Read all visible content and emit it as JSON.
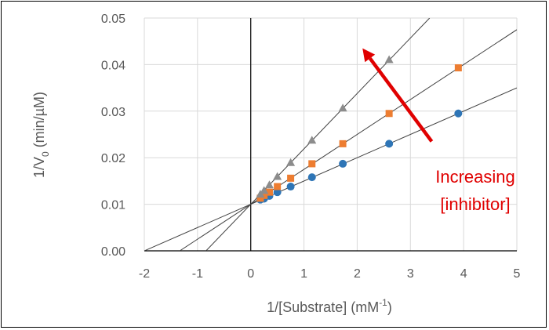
{
  "chart_data": {
    "type": "scatter",
    "title": "",
    "xlabel": "1/[Substrate] (mM",
    "xlabel_sup": "-1",
    "xlabel_end": ")",
    "ylabel": "1/V",
    "ylabel_sub": "0",
    "ylabel_end": " (min/µM)",
    "xlim": [
      -2,
      5
    ],
    "ylim": [
      0,
      0.05
    ],
    "grid": true,
    "x_ticks": [
      "-2",
      "-1",
      "0",
      "1",
      "2",
      "3",
      "4",
      "5"
    ],
    "y_ticks": [
      "0.00",
      "0.01",
      "0.02",
      "0.03",
      "0.04",
      "0.05"
    ],
    "series": [
      {
        "marker": "circle",
        "color": "#2e75b6",
        "fit": {
          "slope": 0.005,
          "intercept": 0.01
        },
        "points": [
          [
            0.18,
            0.011
          ],
          [
            0.25,
            0.0112
          ],
          [
            0.35,
            0.0118
          ],
          [
            0.5,
            0.0126
          ],
          [
            0.75,
            0.0138
          ],
          [
            1.15,
            0.0158
          ],
          [
            1.73,
            0.0187
          ],
          [
            2.6,
            0.023
          ],
          [
            3.9,
            0.0295
          ]
        ]
      },
      {
        "marker": "square",
        "color": "#ed7d31",
        "fit": {
          "slope": 0.0075,
          "intercept": 0.01
        },
        "points": [
          [
            0.18,
            0.0113
          ],
          [
            0.25,
            0.0119
          ],
          [
            0.35,
            0.0126
          ],
          [
            0.5,
            0.0138
          ],
          [
            0.75,
            0.0156
          ],
          [
            1.15,
            0.0187
          ],
          [
            1.73,
            0.023
          ],
          [
            2.6,
            0.0295
          ],
          [
            3.9,
            0.0393
          ]
        ]
      },
      {
        "marker": "triangle",
        "color": "#8c8c8c",
        "fit": {
          "slope": 0.0119,
          "intercept": 0.01
        },
        "points": [
          [
            0.18,
            0.0121
          ],
          [
            0.25,
            0.0129
          ],
          [
            0.35,
            0.0141
          ],
          [
            0.5,
            0.0159
          ],
          [
            0.75,
            0.0189
          ],
          [
            1.15,
            0.0237
          ],
          [
            1.73,
            0.0306
          ],
          [
            2.6,
            0.041
          ]
        ]
      }
    ],
    "annotation": {
      "line1": "Increasing",
      "line2": "[inhibitor]",
      "color": "#e00000",
      "arrow_from": [
        3.4,
        0.0235
      ],
      "arrow_to": [
        2.1,
        0.0435
      ]
    }
  }
}
